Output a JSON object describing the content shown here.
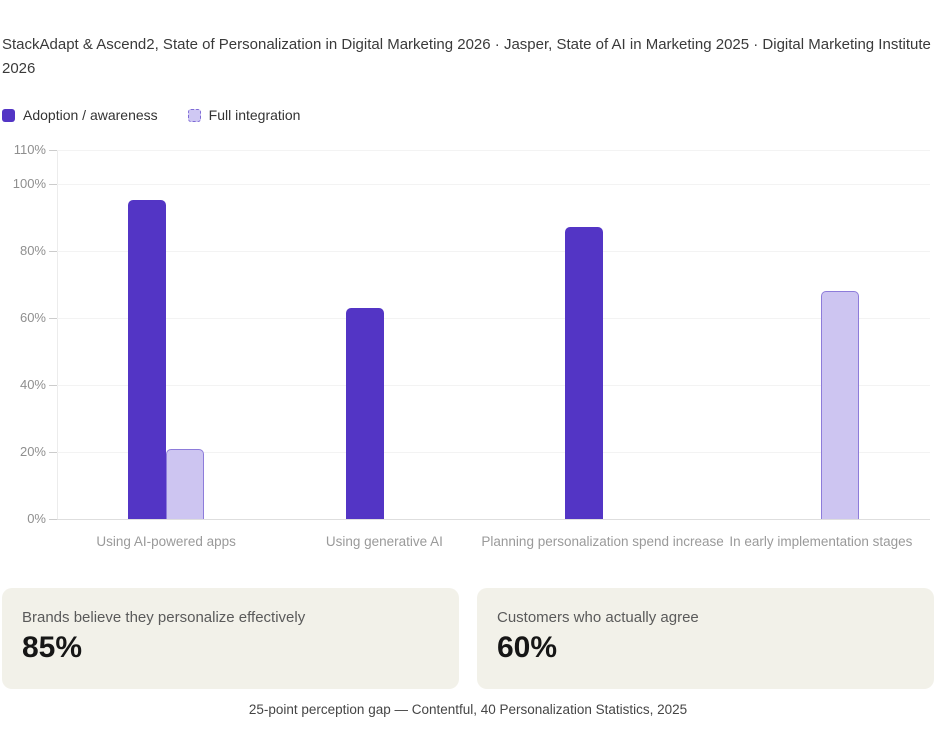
{
  "header": {
    "source_line": "StackAdapt & Ascend2, State of Personalization in Digital Marketing 2026 · Jasper, State of AI in Marketing 2025 · Digital Marketing Institute 2026"
  },
  "legend": [
    {
      "label": "Adoption / awareness",
      "style": "solid"
    },
    {
      "label": "Full integration",
      "style": "dashed"
    }
  ],
  "colors": {
    "series1": "#5335c5",
    "series2_fill": "#cdc5f1",
    "series2_border": "#8d7cda",
    "grid": "#f3f3f3",
    "baseline": "#dedede",
    "tick_label": "#8f8f8f",
    "category_label": "#9a9a9a",
    "card_background": "#f2f1e9"
  },
  "chart_data": {
    "type": "bar",
    "categories": [
      "Using AI-powered apps",
      "Using generative AI",
      "Planning personalization spend increase",
      "In early implementation stages"
    ],
    "series": [
      {
        "name": "Adoption / awareness",
        "values": [
          95,
          63,
          87,
          null
        ]
      },
      {
        "name": "Full integration",
        "values": [
          21,
          null,
          null,
          68
        ]
      }
    ],
    "ylabel": "",
    "xlabel": "",
    "ylim": [
      0,
      110
    ],
    "yticks": [
      0,
      20,
      40,
      60,
      80,
      100,
      110
    ],
    "ytick_suffix": "%",
    "grid": true,
    "legend_position": "top-left"
  },
  "stat_cards": [
    {
      "label": "Brands believe they personalize effectively",
      "value": "85%"
    },
    {
      "label": "Customers who actually agree",
      "value": "60%"
    }
  ],
  "footer": {
    "caption": "25-point perception gap — Contentful, 40 Personalization Statistics, 2025"
  }
}
